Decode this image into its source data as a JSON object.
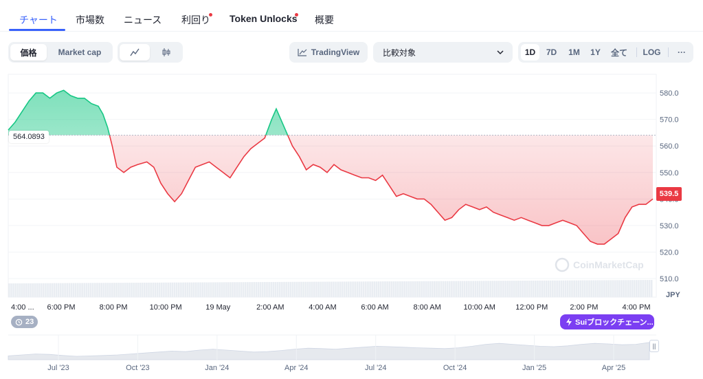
{
  "tabs": [
    {
      "label": "チャート",
      "active": true
    },
    {
      "label": "市場数"
    },
    {
      "label": "ニュース"
    },
    {
      "label": "利回り",
      "dot": true
    },
    {
      "label": "Token Unlocks",
      "dot": true
    },
    {
      "label": "概要"
    }
  ],
  "toolbar": {
    "price_label": "価格",
    "marketcap_label": "Market cap",
    "line_icon": "line-chart-icon",
    "candle_icon": "candlestick-icon",
    "tradingview_label": "TradingView",
    "compare_label": "比較対象",
    "ranges": [
      "1D",
      "7D",
      "1M",
      "1Y",
      "全て"
    ],
    "active_range": "1D",
    "log_label": "LOG",
    "more_label": "···"
  },
  "colors": {
    "up": "#16c784",
    "down": "#ea3943",
    "accent": "#3861fb",
    "sui": "#7b3ff2"
  },
  "chart_data": {
    "type": "area",
    "baseline": 564.0893,
    "baseline_label": "564.0893",
    "current_price_label": "539.5",
    "current_price": 539.5,
    "currency": "JPY",
    "ylim": [
      503,
      586
    ],
    "y_ticks": [
      510,
      520,
      530,
      540,
      550,
      560,
      570,
      580
    ],
    "y_tick_labels": [
      "510.0",
      "520.0",
      "530.0",
      "540.0",
      "550.0",
      "560.0",
      "570.0",
      "580.0"
    ],
    "x_ticks": [
      "4:00 ...",
      "6:00 PM",
      "8:00 PM",
      "10:00 PM",
      "19 May",
      "2:00 AM",
      "4:00 AM",
      "6:00 AM",
      "8:00 AM",
      "10:00 AM",
      "12:00 PM",
      "2:00 PM",
      "4:00 PM"
    ],
    "price": [
      [
        0,
        566
      ],
      [
        0.3,
        569
      ],
      [
        0.6,
        573
      ],
      [
        0.9,
        577
      ],
      [
        1.2,
        580
      ],
      [
        1.5,
        580
      ],
      [
        1.8,
        578
      ],
      [
        2.1,
        580
      ],
      [
        2.4,
        581
      ],
      [
        2.7,
        579
      ],
      [
        3.0,
        578
      ],
      [
        3.3,
        578
      ],
      [
        3.6,
        576
      ],
      [
        3.9,
        575
      ],
      [
        4.1,
        572
      ],
      [
        4.3,
        567
      ],
      [
        4.5,
        560
      ],
      [
        4.7,
        552
      ],
      [
        5.0,
        550
      ],
      [
        5.3,
        552
      ],
      [
        5.6,
        553
      ],
      [
        6.0,
        554
      ],
      [
        6.3,
        552
      ],
      [
        6.6,
        546
      ],
      [
        6.9,
        542
      ],
      [
        7.2,
        539
      ],
      [
        7.5,
        542
      ],
      [
        7.8,
        547
      ],
      [
        8.1,
        552
      ],
      [
        8.4,
        553
      ],
      [
        8.7,
        554
      ],
      [
        9.0,
        552
      ],
      [
        9.3,
        550
      ],
      [
        9.6,
        548
      ],
      [
        9.9,
        552
      ],
      [
        10.2,
        556
      ],
      [
        10.5,
        559
      ],
      [
        10.8,
        561
      ],
      [
        11.1,
        563
      ],
      [
        11.4,
        570
      ],
      [
        11.6,
        574
      ],
      [
        11.8,
        570
      ],
      [
        12.0,
        566
      ],
      [
        12.3,
        560
      ],
      [
        12.6,
        556
      ],
      [
        12.9,
        551
      ],
      [
        13.2,
        553
      ],
      [
        13.5,
        552
      ],
      [
        13.8,
        550
      ],
      [
        14.1,
        553
      ],
      [
        14.4,
        551
      ],
      [
        14.7,
        550
      ],
      [
        15.0,
        549
      ],
      [
        15.3,
        548
      ],
      [
        15.6,
        548
      ],
      [
        15.9,
        547
      ],
      [
        16.2,
        549
      ],
      [
        16.5,
        545
      ],
      [
        16.8,
        541
      ],
      [
        17.1,
        542
      ],
      [
        17.4,
        541
      ],
      [
        17.7,
        540
      ],
      [
        18.0,
        540
      ],
      [
        18.3,
        538
      ],
      [
        18.6,
        535
      ],
      [
        18.9,
        532
      ],
      [
        19.2,
        533
      ],
      [
        19.5,
        536
      ],
      [
        19.8,
        538
      ],
      [
        20.1,
        537
      ],
      [
        20.4,
        536
      ],
      [
        20.7,
        537
      ],
      [
        21.0,
        535
      ],
      [
        21.3,
        534
      ],
      [
        21.6,
        533
      ],
      [
        21.9,
        532
      ],
      [
        22.2,
        533
      ],
      [
        22.5,
        532
      ],
      [
        22.8,
        531
      ],
      [
        23.1,
        530
      ],
      [
        23.4,
        530
      ],
      [
        23.7,
        531
      ],
      [
        24.0,
        532
      ],
      [
        24.3,
        531
      ],
      [
        24.6,
        530
      ],
      [
        24.9,
        527
      ],
      [
        25.2,
        524
      ],
      [
        25.5,
        523
      ],
      [
        25.8,
        523
      ],
      [
        26.1,
        525
      ],
      [
        26.4,
        527
      ],
      [
        26.7,
        533
      ],
      [
        27.0,
        537
      ],
      [
        27.3,
        538
      ],
      [
        27.6,
        538
      ],
      [
        27.9,
        540
      ]
    ],
    "volume_fill": 0.5,
    "watermark": "CoinMarketCap"
  },
  "bottom": {
    "history_count": "23",
    "sui_label": "Suiブロックチェーン...",
    "timeline_labels": [
      "Jul '23",
      "Oct '23",
      "Jan '24",
      "Apr '24",
      "Jul '24",
      "Oct '24",
      "Jan '25",
      "Apr '25"
    ],
    "timeline_series": [
      0.2,
      0.25,
      0.3,
      0.28,
      0.22,
      0.18,
      0.2,
      0.22,
      0.25,
      0.3,
      0.35,
      0.4,
      0.45,
      0.42,
      0.5,
      0.55,
      0.5,
      0.45,
      0.4,
      0.42,
      0.48,
      0.55,
      0.6,
      0.58,
      0.55,
      0.6,
      0.65,
      0.7,
      0.68,
      0.65,
      0.62,
      0.6,
      0.58,
      0.62,
      0.7,
      0.8,
      0.85,
      0.8,
      0.75,
      0.7,
      0.68,
      0.72,
      0.8,
      0.85,
      0.82,
      0.78,
      0.8,
      0.9
    ],
    "handle_icon": "drag-handle-icon"
  }
}
